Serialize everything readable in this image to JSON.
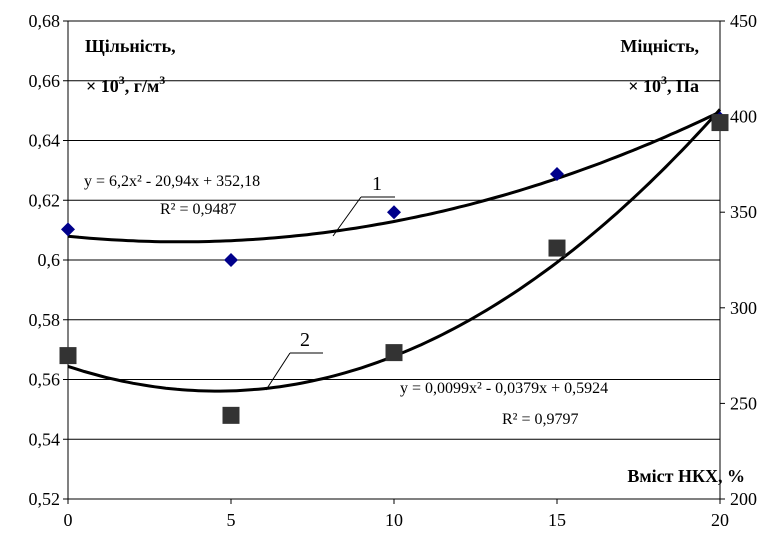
{
  "chart_data": {
    "type": "scatter",
    "x": [
      0,
      5,
      10,
      15,
      20
    ],
    "xlim": [
      0,
      20
    ],
    "xticks": [
      "0",
      "5",
      "10",
      "15",
      "20"
    ],
    "xlabel": "Вміст НКХ, %",
    "y_left": {
      "label_line1": "Щільність,",
      "label_line2_prefix": "× 10",
      "label_line2_sup": "3",
      "label_line2_mid": ", г/м",
      "label_line2_sup2": "3",
      "ylim": [
        0.52,
        0.68
      ],
      "ticks": [
        "0,52",
        "0,54",
        "0,56",
        "0,58",
        "0,6",
        "0,62",
        "0,64",
        "0,66",
        "0,68"
      ]
    },
    "y_right": {
      "label_line1": "Міцність,",
      "label_line2_prefix": "× 10",
      "label_line2_sup": "3",
      "label_line2_mid": ", Па",
      "ylim": [
        200,
        450
      ],
      "ticks": [
        "200",
        "250",
        "300",
        "350",
        "400",
        "450"
      ]
    },
    "series": [
      {
        "id": "1",
        "axis": "right",
        "marker": "diamond",
        "color": "#00008b",
        "values": [
          341,
          325,
          350,
          370,
          399
        ],
        "trend": {
          "a": 6.2,
          "b": -20.94,
          "c": 352.18,
          "xmode": "index"
        },
        "equation": "y = 6,2x² - 20,94x + 352,18",
        "r2": "R² = 0,9487"
      },
      {
        "id": "2",
        "axis": "left",
        "marker": "square",
        "color": "#333333",
        "values": [
          0.568,
          0.548,
          0.569,
          0.604,
          0.646
        ],
        "trend": {
          "a": 0.0099,
          "b": -0.0379,
          "c": 0.5924,
          "xmode": "index"
        },
        "equation": "y = 0,0099x² - 0,0379x + 0,5924",
        "r2": "R² = 0,9797"
      }
    ],
    "grid": "horizontal",
    "legend": "none"
  }
}
